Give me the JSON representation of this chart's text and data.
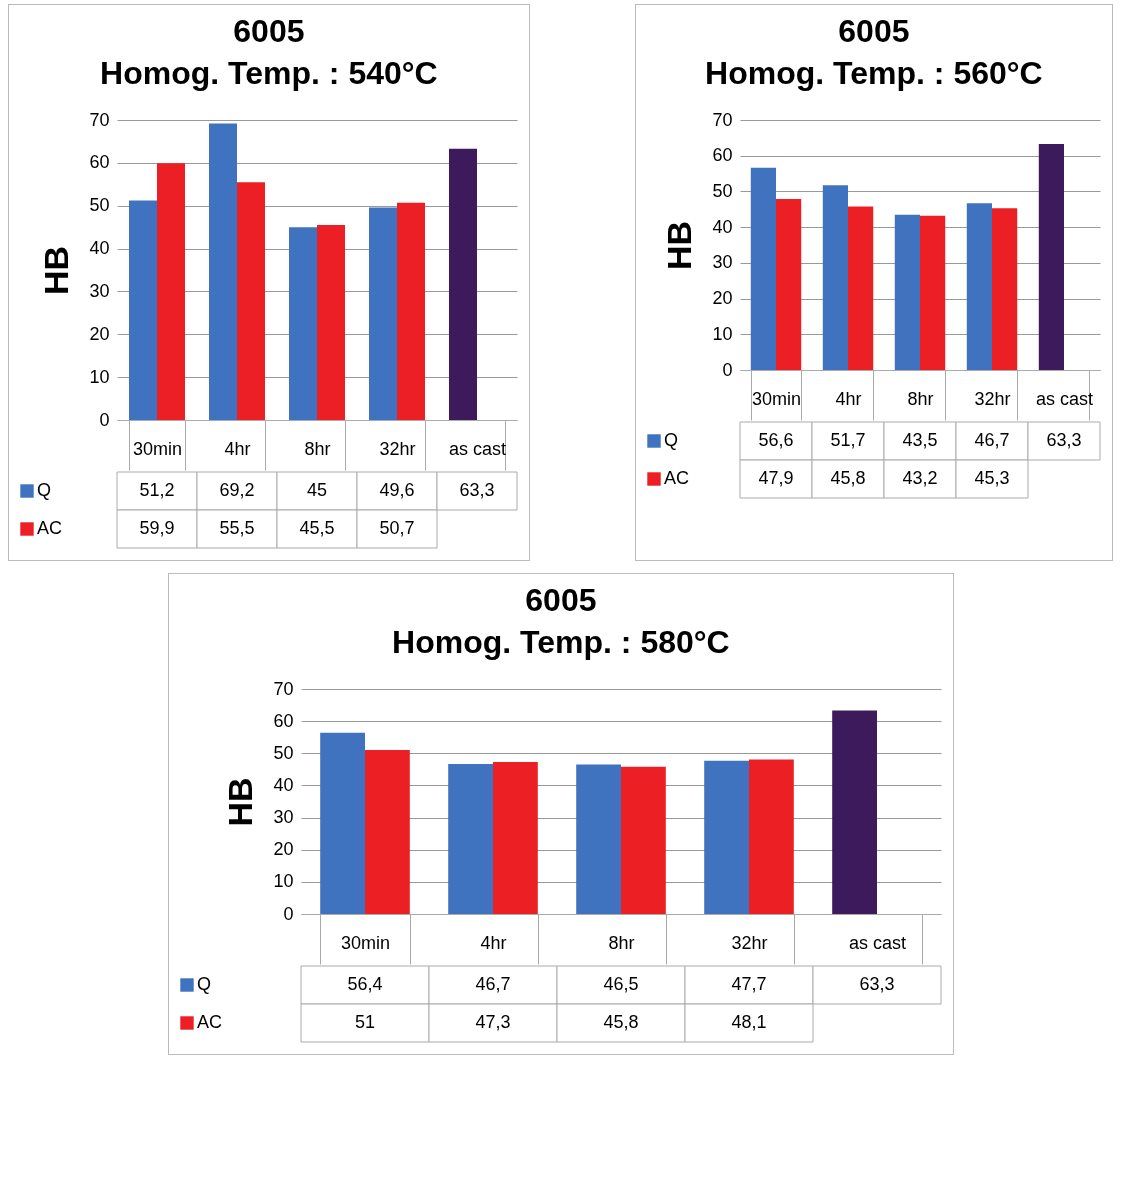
{
  "chart_data": [
    {
      "type": "bar",
      "title": "6005",
      "subtitle": "Homog. Temp. : 540°C",
      "ylabel": "HB",
      "categories": [
        "30min",
        "4hr",
        "8hr",
        "32hr",
        "as cast"
      ],
      "series": [
        {
          "name": "Q",
          "color": "#3f73c0",
          "colors": [
            "#3f73c0",
            "#3f73c0",
            "#3f73c0",
            "#3f73c0",
            "#3d1a5c"
          ],
          "values": [
            51.2,
            69.2,
            45,
            49.6,
            63.3
          ],
          "value_labels": [
            "51,2",
            "69,2",
            "45",
            "49,6",
            "63,3"
          ]
        },
        {
          "name": "AC",
          "color": "#ec2024",
          "values": [
            59.9,
            55.5,
            45.5,
            50.7,
            null
          ],
          "value_labels": [
            "59,9",
            "55,5",
            "45,5",
            "50,7",
            null
          ]
        }
      ],
      "ylim": [
        0,
        70
      ],
      "yticks": [
        0,
        10,
        20,
        30,
        40,
        50,
        60,
        70
      ],
      "grid": "y",
      "legend": "bottom"
    },
    {
      "type": "bar",
      "title": "6005",
      "subtitle": "Homog. Temp. : 560°C",
      "ylabel": "HB",
      "categories": [
        "30min",
        "4hr",
        "8hr",
        "32hr",
        "as cast"
      ],
      "series": [
        {
          "name": "Q",
          "color": "#3f73c0",
          "colors": [
            "#3f73c0",
            "#3f73c0",
            "#3f73c0",
            "#3f73c0",
            "#3d1a5c"
          ],
          "values": [
            56.6,
            51.7,
            43.5,
            46.7,
            63.3
          ],
          "value_labels": [
            "56,6",
            "51,7",
            "43,5",
            "46,7",
            "63,3"
          ]
        },
        {
          "name": "AC",
          "color": "#ec2024",
          "values": [
            47.9,
            45.8,
            43.2,
            45.3,
            null
          ],
          "value_labels": [
            "47,9",
            "45,8",
            "43,2",
            "45,3",
            null
          ]
        }
      ],
      "ylim": [
        0,
        70
      ],
      "yticks": [
        0,
        10,
        20,
        30,
        40,
        50,
        60,
        70
      ],
      "grid": "y",
      "legend": "bottom"
    },
    {
      "type": "bar",
      "title": "6005",
      "subtitle": "Homog. Temp. : 580°C",
      "ylabel": "HB",
      "categories": [
        "30min",
        "4hr",
        "8hr",
        "32hr",
        "as cast"
      ],
      "series": [
        {
          "name": "Q",
          "color": "#3f73c0",
          "colors": [
            "#3f73c0",
            "#3f73c0",
            "#3f73c0",
            "#3f73c0",
            "#3d1a5c"
          ],
          "values": [
            56.4,
            46.7,
            46.5,
            47.7,
            63.3
          ],
          "value_labels": [
            "56,4",
            "46,7",
            "46,5",
            "47,7",
            "63,3"
          ]
        },
        {
          "name": "AC",
          "color": "#ec2024",
          "values": [
            51,
            47.3,
            45.8,
            48.1,
            null
          ],
          "value_labels": [
            "51",
            "47,3",
            "45,8",
            "48,1",
            null
          ]
        }
      ],
      "ylim": [
        0,
        70
      ],
      "yticks": [
        0,
        10,
        20,
        30,
        40,
        50,
        60,
        70
      ],
      "grid": "y",
      "legend": "bottom"
    }
  ]
}
